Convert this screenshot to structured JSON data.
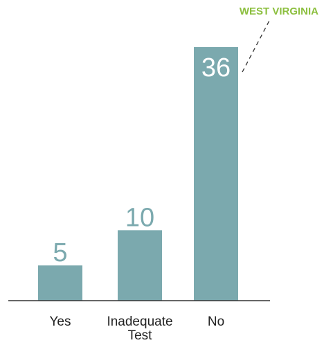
{
  "chart_data": {
    "type": "bar",
    "categories": [
      "Yes",
      "Inadequate Test",
      "No"
    ],
    "category_lines": [
      [
        "Yes"
      ],
      [
        "Inadequate",
        "Test"
      ],
      [
        "No"
      ]
    ],
    "values": [
      5,
      10,
      36
    ],
    "value_labels": [
      "5",
      "10",
      "36"
    ],
    "title": "",
    "xlabel": "",
    "ylabel": "",
    "ylim": [
      0,
      36
    ],
    "grid": false,
    "annotation": {
      "text": "WEST VIRGINIA",
      "target_category": "No"
    }
  },
  "colors": {
    "bar": "#7ba9ae",
    "bar_value_above": "#7ba9ae",
    "bar_value_inside": "#ffffff",
    "axis": "#333333",
    "annotation": "#8cbf3f",
    "callout_line": "#333333"
  }
}
